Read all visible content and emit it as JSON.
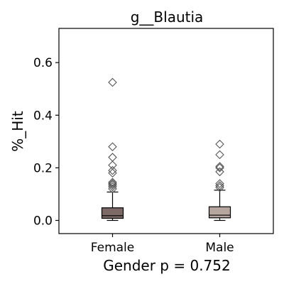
{
  "chart_data": {
    "type": "box",
    "title": "g__Blautia",
    "xlabel": "Gender p = 0.752",
    "ylabel": "%_Hit",
    "ylim": [
      -0.05,
      0.73
    ],
    "yticks": [
      0.0,
      0.2,
      0.4,
      0.6
    ],
    "ytick_labels": [
      "0.0",
      "0.2",
      "0.4",
      "0.6"
    ],
    "categories": [
      "Female",
      "Male"
    ],
    "boxes": [
      {
        "name": "Female",
        "color": "#7d6a66",
        "whisker_low": 0.0,
        "q1": 0.008,
        "median": 0.018,
        "q3": 0.048,
        "whisker_high": 0.108,
        "outliers": [
          0.12,
          0.128,
          0.135,
          0.14,
          0.145,
          0.18,
          0.19,
          0.21,
          0.24,
          0.28,
          0.525
        ]
      },
      {
        "name": "Male",
        "color": "#b6a69f",
        "whisker_low": 0.0,
        "q1": 0.01,
        "median": 0.02,
        "q3": 0.052,
        "whisker_high": 0.115,
        "outliers": [
          0.125,
          0.132,
          0.14,
          0.185,
          0.2,
          0.205,
          0.25,
          0.29
        ]
      }
    ]
  }
}
